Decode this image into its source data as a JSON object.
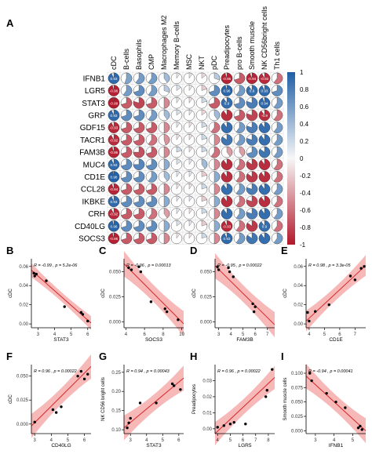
{
  "figure": {
    "panel_labels": [
      "A",
      "B",
      "C",
      "D",
      "E",
      "F",
      "G",
      "H",
      "I"
    ]
  },
  "chart_data": [
    {
      "panel": "A",
      "type": "heatmap",
      "columns": [
        "cDC",
        "B-cells",
        "Basophils",
        "CMP",
        "Macrophages M2",
        "Memory B-cells",
        "MSC",
        "NKT",
        "pDC",
        "Preadipocytes",
        "pro B-cells",
        "Smooth muscle",
        "NK CD56bright cells",
        "Th1 cells"
      ],
      "rows": [
        "IFNB1",
        "LGR5",
        "STAT3",
        "GRP",
        "GDF15",
        "TACR1",
        "FAM3B",
        "MUC4",
        "CD1E",
        "CCL28",
        "IKBKE",
        "CRH",
        "CD40LG",
        "SOCS3"
      ],
      "values": [
        [
          0.93,
          0.55,
          0.6,
          0.6,
          0.4,
          0.1,
          0.1,
          -0.15,
          0.3,
          -0.95,
          -0.7,
          -0.94,
          -0.92,
          -0.6
        ],
        [
          -0.96,
          0.6,
          0.7,
          0.6,
          0.3,
          0.15,
          0.1,
          -0.2,
          0.7,
          0.96,
          0.6,
          0.9,
          0.93,
          0.7
        ],
        [
          -0.99,
          -0.7,
          -0.8,
          -0.7,
          -0.5,
          0.1,
          -0.1,
          0.2,
          -0.7,
          0.9,
          0.7,
          0.8,
          0.94,
          0.6
        ],
        [
          0.93,
          0.7,
          0.7,
          0.6,
          0.4,
          0.15,
          0.1,
          -0.15,
          0.4,
          -0.9,
          -0.7,
          -0.8,
          -0.9,
          -0.6
        ],
        [
          -0.93,
          -0.7,
          -0.7,
          -0.7,
          -0.5,
          0.1,
          -0.1,
          0.2,
          -0.6,
          0.9,
          0.6,
          0.8,
          0.9,
          0.6
        ],
        [
          -0.92,
          -0.7,
          -0.7,
          -0.6,
          -0.45,
          -0.1,
          -0.1,
          0.2,
          -0.5,
          0.85,
          0.6,
          0.8,
          0.9,
          0.6
        ],
        [
          -0.95,
          -0.7,
          -0.75,
          -0.7,
          -0.5,
          0.2,
          -0.1,
          0.2,
          -0.6,
          -0.4,
          -0.4,
          0.7,
          0.85,
          0.6
        ],
        [
          0.93,
          0.7,
          0.75,
          0.7,
          0.5,
          0.15,
          0.1,
          0.4,
          -0.5,
          -0.9,
          -0.6,
          -0.85,
          -0.9,
          -0.6
        ],
        [
          0.98,
          0.7,
          0.7,
          0.6,
          0.4,
          0.1,
          0.1,
          -0.2,
          0.5,
          -0.9,
          -0.6,
          -0.85,
          -0.9,
          -0.6
        ],
        [
          -0.94,
          -0.7,
          -0.7,
          -0.7,
          -0.5,
          -0.1,
          -0.1,
          0.2,
          -0.5,
          0.9,
          0.6,
          0.8,
          0.9,
          0.6
        ],
        [
          0.93,
          0.7,
          0.7,
          0.7,
          0.5,
          0.1,
          0.1,
          -0.2,
          0.5,
          -0.9,
          -0.6,
          -0.8,
          -0.9,
          -0.6
        ],
        [
          -0.92,
          -0.7,
          -0.7,
          -0.6,
          -0.4,
          0.1,
          -0.1,
          0.2,
          -0.5,
          0.9,
          0.6,
          0.8,
          0.9,
          0.6
        ],
        [
          0.96,
          0.7,
          0.7,
          0.7,
          0.5,
          0.15,
          0.1,
          -0.2,
          0.5,
          -0.93,
          -0.6,
          -0.85,
          0.9,
          -0.6
        ],
        [
          -0.96,
          -0.7,
          -0.7,
          -0.7,
          -0.5,
          -0.1,
          -0.1,
          0.2,
          -0.5,
          0.93,
          0.6,
          0.85,
          0.9,
          0.6
        ]
      ],
      "printed_labels": [
        [
          "0.93",
          "",
          "",
          "",
          "",
          "",
          "",
          "",
          "",
          "-0.95",
          "",
          "-0.94",
          "-0.92",
          ""
        ],
        [
          "-0.96",
          "",
          "",
          "",
          "",
          "",
          "",
          "",
          "",
          "0.96",
          "",
          "0.9",
          "0.93",
          ""
        ],
        [
          "-0.99",
          "",
          "",
          "",
          "",
          "",
          "",
          "",
          "",
          "0.9",
          "",
          "",
          "0.94",
          ""
        ],
        [
          "0.93",
          "",
          "",
          "",
          "",
          "",
          "",
          "",
          "",
          "",
          "",
          "",
          "-0.9",
          ""
        ],
        [
          "-0.93",
          "",
          "",
          "",
          "",
          "",
          "",
          "",
          "",
          "",
          "",
          "",
          "",
          ""
        ],
        [
          "-0.92",
          "",
          "",
          "",
          "",
          "",
          "",
          "",
          "",
          "",
          "",
          "",
          "",
          ""
        ],
        [
          "-0.95",
          "",
          "",
          "",
          "",
          "",
          "",
          "",
          "",
          "",
          "",
          "",
          "",
          ""
        ],
        [
          "0.93",
          "",
          "",
          "",
          "",
          "",
          "",
          "",
          "",
          "",
          "",
          "",
          "",
          ""
        ],
        [
          "0.98",
          "",
          "",
          "",
          "",
          "",
          "",
          "",
          "",
          "",
          "",
          "",
          "",
          ""
        ],
        [
          "-0.94",
          "",
          "",
          "",
          "",
          "",
          "",
          "",
          "",
          "",
          "",
          "",
          "",
          ""
        ],
        [
          "0.93",
          "",
          "",
          "",
          "",
          "",
          "",
          "",
          "",
          "",
          "",
          "",
          "",
          ""
        ],
        [
          "-0.92",
          "",
          "",
          "",
          "",
          "",
          "",
          "",
          "",
          "",
          "",
          "",
          "",
          ""
        ],
        [
          "0.96",
          "",
          "",
          "",
          "",
          "",
          "",
          "",
          "",
          "-0.93",
          "",
          "",
          "0.9",
          ""
        ],
        [
          "-0.96",
          "",
          "",
          "",
          "",
          "",
          "",
          "",
          "",
          "0.93",
          "",
          "",
          "",
          ""
        ]
      ],
      "colorbar": {
        "ticks": [
          "1",
          "0.8",
          "0.6",
          "0.4",
          "0.2",
          "0",
          "-0.2",
          "-0.4",
          "-0.6",
          "-0.8",
          "-1"
        ],
        "range": [
          -1,
          1
        ]
      },
      "colors": {
        "positive": "#1f5fa6",
        "negative": "#b2182b",
        "mid": "#f7f7f7"
      }
    },
    {
      "panel": "B",
      "type": "scatter",
      "xlabel": "STAT3",
      "ylabel": "cDC",
      "annotation": "R = -0.99 , p = 5.2e-06",
      "xticks": [
        3,
        4,
        5,
        6
      ],
      "yticks": [
        0,
        0.02,
        0.04,
        0.06
      ],
      "xticklabels": [
        "3",
        "4",
        "5",
        "6"
      ],
      "yticklabels": [
        "0.00",
        "0.02",
        "0.04",
        "0.06"
      ],
      "xlim": [
        2.6,
        6.2
      ],
      "ylim": [
        -0.004,
        0.068
      ],
      "points": [
        [
          2.75,
          0.053
        ],
        [
          2.8,
          0.05
        ],
        [
          2.9,
          0.052
        ],
        [
          3.5,
          0.045
        ],
        [
          4.6,
          0.018
        ],
        [
          5.6,
          0.012
        ],
        [
          5.7,
          0.01
        ],
        [
          6.0,
          0.003
        ]
      ],
      "fit": [
        [
          2.6,
          0.056
        ],
        [
          6.2,
          0.001
        ]
      ],
      "band_width": 0.004
    },
    {
      "panel": "C",
      "type": "scatter",
      "xlabel": "SOCS3",
      "ylabel": "cDC",
      "annotation": "R = -0.96 , p = 0.00013",
      "xticks": [
        4,
        6,
        8,
        10
      ],
      "yticks": [
        0,
        0.025,
        0.05
      ],
      "xticklabels": [
        "4",
        "6",
        "8",
        "10"
      ],
      "yticklabels": [
        "0.000",
        "0.025",
        "0.050"
      ],
      "xlim": [
        3.8,
        10.2
      ],
      "ylim": [
        -0.006,
        0.063
      ],
      "points": [
        [
          4.3,
          0.054
        ],
        [
          4.6,
          0.052
        ],
        [
          5.4,
          0.055
        ],
        [
          5.6,
          0.05
        ],
        [
          6.7,
          0.02
        ],
        [
          8.2,
          0.013
        ],
        [
          8.4,
          0.01
        ],
        [
          9.6,
          0.002
        ]
      ],
      "fit": [
        [
          3.8,
          0.058
        ],
        [
          10.2,
          -0.002
        ]
      ],
      "band_width": 0.007
    },
    {
      "panel": "D",
      "type": "scatter",
      "xlabel": "FAM3B",
      "ylabel": "cDC",
      "annotation": "R = -0.95 , p = 0.00022",
      "xticks": [
        3,
        4,
        5,
        6,
        7
      ],
      "yticks": [
        0,
        0.025,
        0.05
      ],
      "xticklabels": [
        "3",
        "4",
        "5",
        "6",
        "7"
      ],
      "yticklabels": [
        "0.000",
        "0.025",
        "0.050"
      ],
      "xlim": [
        2.7,
        7.6
      ],
      "ylim": [
        -0.006,
        0.063
      ],
      "points": [
        [
          2.9,
          0.055
        ],
        [
          3.0,
          0.052
        ],
        [
          3.8,
          0.054
        ],
        [
          3.9,
          0.05
        ],
        [
          4.2,
          0.045
        ],
        [
          5.8,
          0.018
        ],
        [
          5.9,
          0.01
        ],
        [
          6.0,
          0.015
        ]
      ],
      "fit": [
        [
          2.7,
          0.056
        ],
        [
          7.6,
          -0.003
        ]
      ],
      "band_width": 0.007
    },
    {
      "panel": "E",
      "type": "scatter",
      "xlabel": "CD1E",
      "ylabel": "cDC",
      "annotation": "R = 0.98 , p = 3.3e-05",
      "xticks": [
        4,
        5,
        6,
        7
      ],
      "yticks": [
        0,
        0.02,
        0.04,
        0.06
      ],
      "xticklabels": [
        "4",
        "5",
        "6",
        "7"
      ],
      "yticklabels": [
        "0.00",
        "0.02",
        "0.04",
        "0.06"
      ],
      "xlim": [
        3.8,
        7.7
      ],
      "ylim": [
        -0.004,
        0.068
      ],
      "points": [
        [
          3.9,
          0.012
        ],
        [
          4.0,
          0.003
        ],
        [
          4.4,
          0.013
        ],
        [
          5.3,
          0.02
        ],
        [
          6.7,
          0.05
        ],
        [
          7.0,
          0.046
        ],
        [
          7.4,
          0.058
        ],
        [
          7.6,
          0.06
        ]
      ],
      "fit": [
        [
          3.8,
          0.003
        ],
        [
          7.7,
          0.061
        ]
      ],
      "band_width": 0.006
    },
    {
      "panel": "F",
      "type": "scatter",
      "xlabel": "CD40LG",
      "ylabel": "cDC",
      "annotation": "R = 0.96 , p = 0.00022",
      "xticks": [
        3,
        4,
        5,
        6
      ],
      "yticks": [
        0,
        0.025,
        0.05
      ],
      "xticklabels": [
        "3",
        "4",
        "5",
        "6"
      ],
      "yticklabels": [
        "0.000",
        "0.025",
        "0.050"
      ],
      "xlim": [
        2.8,
        6.4
      ],
      "ylim": [
        -0.01,
        0.062
      ],
      "points": [
        [
          3.0,
          0.002
        ],
        [
          4.1,
          0.015
        ],
        [
          4.3,
          0.012
        ],
        [
          4.6,
          0.018
        ],
        [
          5.6,
          0.05
        ],
        [
          5.8,
          0.055
        ],
        [
          6.0,
          0.047
        ],
        [
          6.2,
          0.052
        ]
      ],
      "fit": [
        [
          2.8,
          -0.002
        ],
        [
          6.4,
          0.06
        ]
      ],
      "band_width": 0.007
    },
    {
      "panel": "G",
      "type": "scatter",
      "xlabel": "STAT3",
      "ylabel": "NK CD56 bright cells",
      "annotation": "R = 0.94 , p = 0.00043",
      "xticks": [
        3,
        4,
        5,
        6
      ],
      "yticks": [
        0.1,
        0.15,
        0.2,
        0.25
      ],
      "xticklabels": [
        "3",
        "4",
        "5",
        "6"
      ],
      "yticklabels": [
        "0.10",
        "0.15",
        "0.20",
        "0.25"
      ],
      "xlim": [
        2.6,
        6.3
      ],
      "ylim": [
        0.09,
        0.27
      ],
      "points": [
        [
          2.8,
          0.105
        ],
        [
          2.9,
          0.118
        ],
        [
          3.0,
          0.13
        ],
        [
          3.6,
          0.17
        ],
        [
          4.6,
          0.17
        ],
        [
          5.6,
          0.22
        ],
        [
          5.7,
          0.215
        ],
        [
          6.1,
          0.205
        ]
      ],
      "fit": [
        [
          2.6,
          0.105
        ],
        [
          6.3,
          0.235
        ]
      ],
      "band_width": 0.018
    },
    {
      "panel": "H",
      "type": "scatter",
      "xlabel": "LGR5",
      "ylabel": "Preadipocytes",
      "annotation": "R = 0.96 , p = 0.00022",
      "xticks": [
        4,
        5,
        6,
        7,
        8
      ],
      "yticks": [
        0,
        0.01,
        0.02,
        0.03
      ],
      "xticklabels": [
        "4",
        "5",
        "6",
        "7",
        "8"
      ],
      "yticklabels": [
        "0.00",
        "0.01",
        "0.02",
        "0.03"
      ],
      "xlim": [
        3.8,
        8.5
      ],
      "ylim": [
        -0.003,
        0.04
      ],
      "points": [
        [
          4.0,
          0.001
        ],
        [
          4.5,
          0.002
        ],
        [
          5.0,
          0.003
        ],
        [
          5.3,
          0.004
        ],
        [
          6.2,
          0.003
        ],
        [
          7.8,
          0.02
        ],
        [
          7.9,
          0.024
        ],
        [
          8.3,
          0.037
        ]
      ],
      "fit": [
        [
          3.8,
          -0.003
        ],
        [
          8.5,
          0.032
        ]
      ],
      "band_width": 0.004
    },
    {
      "panel": "I",
      "type": "scatter",
      "xlabel": "IFNB1",
      "ylabel": "Smooth muscle cells",
      "annotation": "R = -0.94 , p = 0.00041",
      "xticks": [
        3,
        4,
        5
      ],
      "yticks": [
        0,
        0.025,
        0.05,
        0.075,
        0.1
      ],
      "xticklabels": [
        "3",
        "4",
        "5"
      ],
      "yticklabels": [
        "0.000",
        "0.025",
        "0.050",
        "0.075",
        "0.100"
      ],
      "xlim": [
        2.5,
        5.7
      ],
      "ylim": [
        -0.005,
        0.115
      ],
      "points": [
        [
          2.7,
          0.1
        ],
        [
          2.8,
          0.087
        ],
        [
          3.6,
          0.065
        ],
        [
          4.1,
          0.05
        ],
        [
          4.6,
          0.04
        ],
        [
          5.3,
          0.005
        ],
        [
          5.4,
          0.008
        ],
        [
          5.5,
          0.002
        ]
      ],
      "fit": [
        [
          2.5,
          0.095
        ],
        [
          5.7,
          0.0
        ]
      ],
      "band_width": 0.012
    }
  ]
}
